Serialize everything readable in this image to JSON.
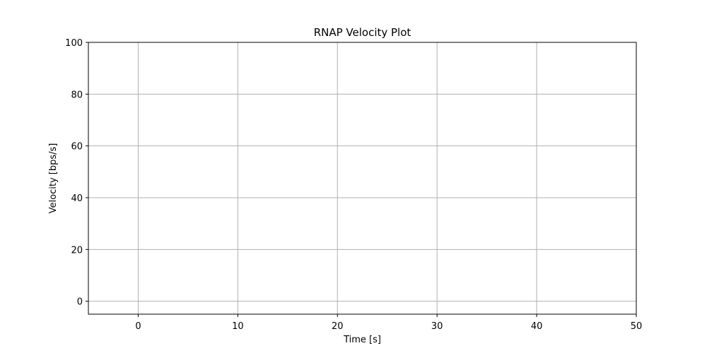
{
  "chart_data": {
    "type": "line",
    "title": "RNAP Velocity Plot",
    "xlabel": "Time [s]",
    "ylabel": "Velocity [bps/s]",
    "xlim": [
      -5,
      50
    ],
    "ylim": [
      -5,
      100
    ],
    "xticks": [
      0,
      10,
      20,
      30,
      40,
      50
    ],
    "yticks": [
      0,
      20,
      40,
      60,
      80,
      100
    ],
    "xtick_labels": [
      "0",
      "10",
      "20",
      "30",
      "40",
      "50"
    ],
    "ytick_labels": [
      "0",
      "20",
      "40",
      "60",
      "80",
      "100"
    ],
    "grid": true,
    "series": []
  },
  "colors": {
    "grid": "#b0b0b0",
    "axes": "#000000",
    "background": "#ffffff"
  }
}
